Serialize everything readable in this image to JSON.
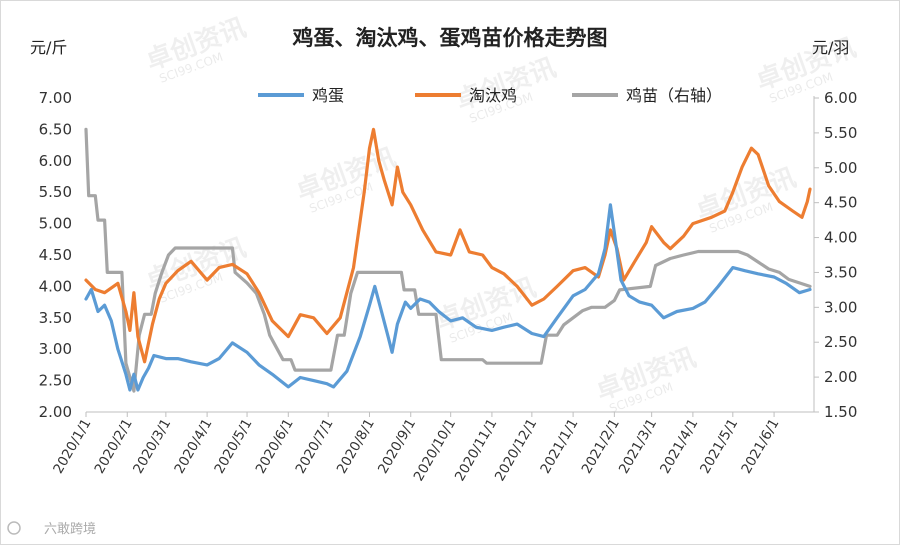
{
  "chart_data": {
    "type": "line",
    "title": "鸡蛋、淘汰鸡、蛋鸡苗价格走势图",
    "ylabel": "元/斤",
    "y2label": "元/羽",
    "ylim": [
      2.0,
      7.0
    ],
    "y2lim": [
      1.5,
      6.0
    ],
    "yticks": [
      "2.00",
      "2.50",
      "3.00",
      "3.50",
      "4.00",
      "4.50",
      "5.00",
      "5.50",
      "6.00",
      "6.50",
      "7.00"
    ],
    "y2ticks": [
      "1.50",
      "2.00",
      "2.50",
      "3.00",
      "3.50",
      "4.00",
      "4.50",
      "5.00",
      "5.50",
      "6.00"
    ],
    "xticks": [
      "2020/1/1",
      "2020/2/1",
      "2020/3/1",
      "2020/4/1",
      "2020/5/1",
      "2020/6/1",
      "2020/7/1",
      "2020/8/1",
      "2020/9/1",
      "2020/10/1",
      "2020/11/1",
      "2020/12/1",
      "2021/1/1",
      "2021/2/1",
      "2021/3/1",
      "2021/4/1",
      "2021/5/1",
      "2021/6/1"
    ],
    "legend_position": "top",
    "grid": false,
    "series": [
      {
        "name": "鸡蛋",
        "axis": "left",
        "color": "#5B9BD5",
        "points": [
          [
            "2020-01-01",
            3.8
          ],
          [
            "2020-01-05",
            3.95
          ],
          [
            "2020-01-10",
            3.6
          ],
          [
            "2020-01-15",
            3.7
          ],
          [
            "2020-01-20",
            3.45
          ],
          [
            "2020-01-25",
            3.0
          ],
          [
            "2020-01-31",
            2.6
          ],
          [
            "2020-02-03",
            2.35
          ],
          [
            "2020-02-06",
            2.6
          ],
          [
            "2020-02-09",
            2.35
          ],
          [
            "2020-02-13",
            2.55
          ],
          [
            "2020-02-17",
            2.7
          ],
          [
            "2020-02-21",
            2.9
          ],
          [
            "2020-03-01",
            2.85
          ],
          [
            "2020-03-10",
            2.85
          ],
          [
            "2020-03-20",
            2.8
          ],
          [
            "2020-04-01",
            2.75
          ],
          [
            "2020-04-10",
            2.85
          ],
          [
            "2020-04-20",
            3.1
          ],
          [
            "2020-05-01",
            2.95
          ],
          [
            "2020-05-10",
            2.75
          ],
          [
            "2020-05-20",
            2.6
          ],
          [
            "2020-06-01",
            2.4
          ],
          [
            "2020-06-10",
            2.55
          ],
          [
            "2020-06-20",
            2.5
          ],
          [
            "2020-06-30",
            2.45
          ],
          [
            "2020-07-05",
            2.4
          ],
          [
            "2020-07-15",
            2.65
          ],
          [
            "2020-07-25",
            3.2
          ],
          [
            "2020-08-01",
            3.7
          ],
          [
            "2020-08-05",
            4.0
          ],
          [
            "2020-08-10",
            3.6
          ],
          [
            "2020-08-15",
            3.2
          ],
          [
            "2020-08-18",
            2.95
          ],
          [
            "2020-08-22",
            3.4
          ],
          [
            "2020-08-28",
            3.75
          ],
          [
            "2020-09-01",
            3.65
          ],
          [
            "2020-09-08",
            3.8
          ],
          [
            "2020-09-15",
            3.75
          ],
          [
            "2020-09-22",
            3.6
          ],
          [
            "2020-10-01",
            3.45
          ],
          [
            "2020-10-10",
            3.5
          ],
          [
            "2020-10-20",
            3.35
          ],
          [
            "2020-11-01",
            3.3
          ],
          [
            "2020-11-10",
            3.35
          ],
          [
            "2020-11-20",
            3.4
          ],
          [
            "2020-12-01",
            3.25
          ],
          [
            "2020-12-10",
            3.2
          ],
          [
            "2020-12-20",
            3.5
          ],
          [
            "2021-01-01",
            3.85
          ],
          [
            "2021-01-10",
            3.95
          ],
          [
            "2021-01-20",
            4.2
          ],
          [
            "2021-01-25",
            4.6
          ],
          [
            "2021-01-29",
            5.3
          ],
          [
            "2021-02-02",
            4.7
          ],
          [
            "2021-02-06",
            4.1
          ],
          [
            "2021-02-12",
            3.85
          ],
          [
            "2021-02-20",
            3.75
          ],
          [
            "2021-03-01",
            3.7
          ],
          [
            "2021-03-10",
            3.5
          ],
          [
            "2021-03-20",
            3.6
          ],
          [
            "2021-04-01",
            3.65
          ],
          [
            "2021-04-10",
            3.75
          ],
          [
            "2021-04-20",
            4.0
          ],
          [
            "2021-05-01",
            4.3
          ],
          [
            "2021-05-10",
            4.25
          ],
          [
            "2021-05-20",
            4.2
          ],
          [
            "2021-06-01",
            4.15
          ],
          [
            "2021-06-10",
            4.05
          ],
          [
            "2021-06-20",
            3.9
          ],
          [
            "2021-06-28",
            3.95
          ]
        ]
      },
      {
        "name": "淘汰鸡",
        "axis": "left",
        "color": "#ED7D31",
        "points": [
          [
            "2020-01-01",
            4.1
          ],
          [
            "2020-01-08",
            3.95
          ],
          [
            "2020-01-15",
            3.9
          ],
          [
            "2020-01-25",
            4.05
          ],
          [
            "2020-01-31",
            3.6
          ],
          [
            "2020-02-03",
            3.3
          ],
          [
            "2020-02-06",
            3.9
          ],
          [
            "2020-02-09",
            3.2
          ],
          [
            "2020-02-14",
            2.8
          ],
          [
            "2020-02-20",
            3.4
          ],
          [
            "2020-02-25",
            3.8
          ],
          [
            "2020-03-01",
            4.05
          ],
          [
            "2020-03-10",
            4.25
          ],
          [
            "2020-03-20",
            4.4
          ],
          [
            "2020-04-01",
            4.1
          ],
          [
            "2020-04-10",
            4.3
          ],
          [
            "2020-04-20",
            4.35
          ],
          [
            "2020-05-01",
            4.2
          ],
          [
            "2020-05-10",
            3.9
          ],
          [
            "2020-05-20",
            3.45
          ],
          [
            "2020-06-01",
            3.2
          ],
          [
            "2020-06-10",
            3.55
          ],
          [
            "2020-06-20",
            3.5
          ],
          [
            "2020-06-30",
            3.25
          ],
          [
            "2020-07-10",
            3.5
          ],
          [
            "2020-07-20",
            4.3
          ],
          [
            "2020-07-28",
            5.5
          ],
          [
            "2020-08-01",
            6.2
          ],
          [
            "2020-08-04",
            6.5
          ],
          [
            "2020-08-08",
            6.0
          ],
          [
            "2020-08-12",
            5.7
          ],
          [
            "2020-08-18",
            5.3
          ],
          [
            "2020-08-22",
            5.9
          ],
          [
            "2020-08-26",
            5.5
          ],
          [
            "2020-09-01",
            5.3
          ],
          [
            "2020-09-10",
            4.9
          ],
          [
            "2020-09-20",
            4.55
          ],
          [
            "2020-10-01",
            4.5
          ],
          [
            "2020-10-08",
            4.9
          ],
          [
            "2020-10-15",
            4.55
          ],
          [
            "2020-10-25",
            4.5
          ],
          [
            "2020-11-01",
            4.3
          ],
          [
            "2020-11-10",
            4.2
          ],
          [
            "2020-11-20",
            4.0
          ],
          [
            "2020-12-01",
            3.7
          ],
          [
            "2020-12-10",
            3.8
          ],
          [
            "2020-12-20",
            4.0
          ],
          [
            "2021-01-01",
            4.25
          ],
          [
            "2021-01-10",
            4.3
          ],
          [
            "2021-01-20",
            4.15
          ],
          [
            "2021-01-25",
            4.5
          ],
          [
            "2021-01-29",
            4.9
          ],
          [
            "2021-02-03",
            4.6
          ],
          [
            "2021-02-08",
            4.1
          ],
          [
            "2021-02-15",
            4.35
          ],
          [
            "2021-02-25",
            4.7
          ],
          [
            "2021-03-01",
            4.95
          ],
          [
            "2021-03-10",
            4.7
          ],
          [
            "2021-03-15",
            4.6
          ],
          [
            "2021-03-25",
            4.8
          ],
          [
            "2021-04-01",
            5.0
          ],
          [
            "2021-04-15",
            5.1
          ],
          [
            "2021-04-25",
            5.2
          ],
          [
            "2021-05-01",
            5.5
          ],
          [
            "2021-05-08",
            5.9
          ],
          [
            "2021-05-15",
            6.2
          ],
          [
            "2021-05-20",
            6.1
          ],
          [
            "2021-05-28",
            5.6
          ],
          [
            "2021-06-05",
            5.35
          ],
          [
            "2021-06-15",
            5.2
          ],
          [
            "2021-06-22",
            5.1
          ],
          [
            "2021-06-26",
            5.35
          ],
          [
            "2021-06-28",
            5.55
          ]
        ]
      },
      {
        "name": "鸡苗（右轴）",
        "axis": "right",
        "color": "#A5A5A5",
        "points": [
          [
            "2020-01-01",
            5.55
          ],
          [
            "2020-01-03",
            4.6
          ],
          [
            "2020-01-08",
            4.6
          ],
          [
            "2020-01-10",
            4.25
          ],
          [
            "2020-01-15",
            4.25
          ],
          [
            "2020-01-17",
            3.5
          ],
          [
            "2020-01-28",
            3.5
          ],
          [
            "2020-01-31",
            2.2
          ],
          [
            "2020-02-06",
            1.8
          ],
          [
            "2020-02-10",
            2.6
          ],
          [
            "2020-02-14",
            2.9
          ],
          [
            "2020-02-19",
            2.9
          ],
          [
            "2020-02-22",
            3.2
          ],
          [
            "2020-02-27",
            3.5
          ],
          [
            "2020-03-03",
            3.75
          ],
          [
            "2020-03-08",
            3.85
          ],
          [
            "2020-04-20",
            3.85
          ],
          [
            "2020-04-22",
            3.5
          ],
          [
            "2020-05-01",
            3.35
          ],
          [
            "2020-05-08",
            3.2
          ],
          [
            "2020-05-14",
            2.9
          ],
          [
            "2020-05-18",
            2.6
          ],
          [
            "2020-05-28",
            2.25
          ],
          [
            "2020-06-03",
            2.25
          ],
          [
            "2020-06-06",
            2.1
          ],
          [
            "2020-07-03",
            2.1
          ],
          [
            "2020-07-08",
            2.6
          ],
          [
            "2020-07-13",
            2.6
          ],
          [
            "2020-07-18",
            3.2
          ],
          [
            "2020-07-23",
            3.5
          ],
          [
            "2020-08-25",
            3.5
          ],
          [
            "2020-08-27",
            3.25
          ],
          [
            "2020-09-04",
            3.25
          ],
          [
            "2020-09-07",
            2.9
          ],
          [
            "2020-09-20",
            2.9
          ],
          [
            "2020-09-24",
            2.25
          ],
          [
            "2020-10-25",
            2.25
          ],
          [
            "2020-10-28",
            2.2
          ],
          [
            "2020-12-08",
            2.2
          ],
          [
            "2020-12-12",
            2.6
          ],
          [
            "2020-12-20",
            2.6
          ],
          [
            "2020-12-25",
            2.75
          ],
          [
            "2021-01-01",
            2.85
          ],
          [
            "2021-01-08",
            2.95
          ],
          [
            "2021-01-15",
            3.0
          ],
          [
            "2021-01-25",
            3.0
          ],
          [
            "2021-02-01",
            3.1
          ],
          [
            "2021-02-05",
            3.25
          ],
          [
            "2021-02-28",
            3.3
          ],
          [
            "2021-03-04",
            3.6
          ],
          [
            "2021-03-15",
            3.7
          ],
          [
            "2021-03-25",
            3.75
          ],
          [
            "2021-04-05",
            3.8
          ],
          [
            "2021-05-05",
            3.8
          ],
          [
            "2021-05-12",
            3.75
          ],
          [
            "2021-05-20",
            3.65
          ],
          [
            "2021-05-28",
            3.55
          ],
          [
            "2021-06-05",
            3.5
          ],
          [
            "2021-06-12",
            3.4
          ],
          [
            "2021-06-20",
            3.35
          ],
          [
            "2021-06-28",
            3.3
          ]
        ]
      }
    ]
  },
  "watermark": {
    "brand": "卓创资讯",
    "site": "SCI99.COM"
  },
  "footer": {
    "text": "六敢跨境"
  }
}
